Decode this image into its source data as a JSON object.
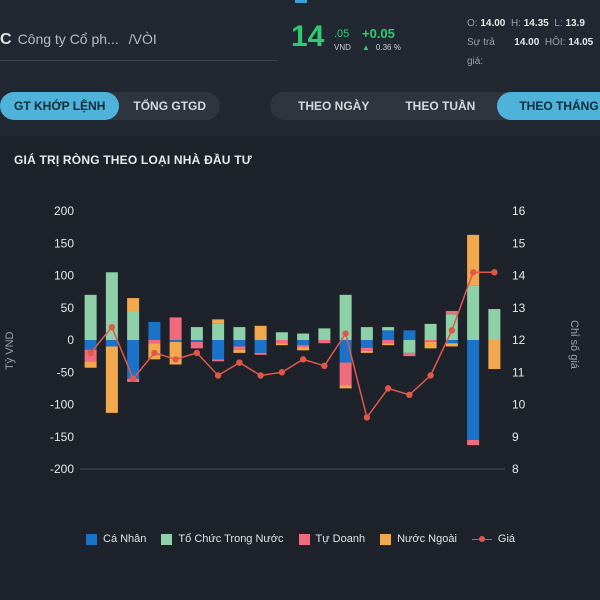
{
  "header": {
    "company_name": "Công ty Cổ ph...",
    "symbol": "/VÒI",
    "price_main": "14",
    "price_decimal": ".05",
    "price_unit": "VND",
    "change": "+0.05",
    "change_pct": "0.36 %",
    "stats": {
      "open_label": "O:",
      "open": "14.00",
      "high_label": "H:",
      "high": "14.35",
      "low_label": "L:",
      "low": "13.9",
      "sutra_label": "Sự trả",
      "sutra": "14.00",
      "hoi_label": "HÔI:",
      "hoi": "14.05",
      "gia_label": "giá:"
    }
  },
  "tabs_left": [
    {
      "label": "GT KHỚP LỆNH",
      "active": true
    },
    {
      "label": "TỔNG GTGD",
      "active": false
    }
  ],
  "tabs_right": [
    {
      "label": "THEO NGÀY",
      "active": false
    },
    {
      "label": "THEO TUẦN",
      "active": false
    },
    {
      "label": "THEO THÁNG",
      "active": true
    }
  ],
  "panel_title": "GIÁ TRỊ RÒNG THEO LOẠI NHÀ ĐẦU TƯ",
  "colors": {
    "ca_nhan": "#1a73c8",
    "to_chuc_trong_nuoc": "#8ed1a8",
    "tu_doanh": "#f06b7e",
    "nuoc_ngoai": "#f2a94e",
    "gia": "#e1584b"
  },
  "chart_data": {
    "type": "bar",
    "stacked": true,
    "ylabel": "Tỷ VND",
    "y2label": "Chỉ số giá",
    "ylim": [
      -200,
      200
    ],
    "yticks": [
      200,
      150,
      100,
      50,
      0,
      -50,
      -100,
      -150,
      -200
    ],
    "y2lim": [
      8,
      16
    ],
    "y2ticks": [
      16,
      15,
      14,
      13,
      12,
      11,
      10,
      9,
      8
    ],
    "legend_position": "bottom",
    "series": [
      {
        "name": "Cá Nhân",
        "key": "ca_nhan",
        "values": [
          -15,
          -10,
          -60,
          28,
          -3,
          -3,
          -30,
          -10,
          -20,
          0,
          -8,
          0,
          -35,
          -12,
          15,
          15,
          0,
          -5,
          -155,
          0
        ]
      },
      {
        "name": "Tổ Chức Trong Nước",
        "key": "to_chuc_trong_nuoc",
        "values": [
          70,
          105,
          45,
          0,
          0,
          20,
          25,
          20,
          0,
          12,
          10,
          18,
          70,
          20,
          5,
          -20,
          25,
          40,
          85,
          48
        ]
      },
      {
        "name": "Tự Doanh",
        "key": "tu_doanh",
        "values": [
          -18,
          0,
          -5,
          -5,
          35,
          -10,
          -3,
          -5,
          -3,
          -5,
          -3,
          -5,
          -35,
          -5,
          -5,
          -5,
          -3,
          5,
          -8,
          0
        ]
      },
      {
        "name": "Nước Ngoài",
        "key": "nuoc_ngoai",
        "values": [
          -10,
          -103,
          20,
          -25,
          -35,
          0,
          7,
          -5,
          22,
          -3,
          -5,
          0,
          -5,
          -3,
          -3,
          0,
          -10,
          -5,
          78,
          -45
        ]
      }
    ],
    "line_series": {
      "name": "Giá",
      "key": "gia",
      "axis": "right",
      "values": [
        11.6,
        12.4,
        10.8,
        11.6,
        11.4,
        11.6,
        10.9,
        11.3,
        10.9,
        11.0,
        11.4,
        11.2,
        12.2,
        9.6,
        10.5,
        10.3,
        10.9,
        12.3,
        14.1,
        14.1
      ]
    }
  }
}
